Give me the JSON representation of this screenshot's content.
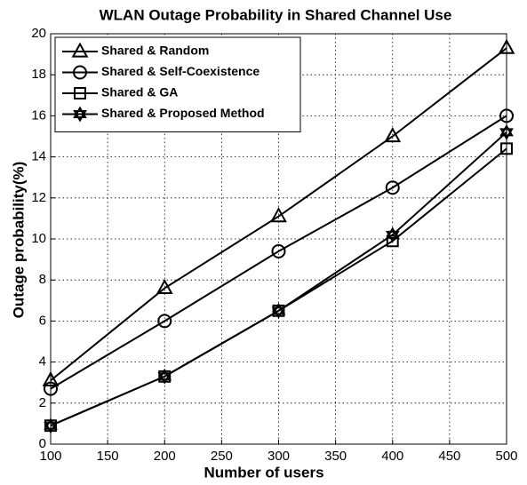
{
  "chart_data": {
    "type": "line",
    "title": "WLAN Outage Probability in Shared Channel Use",
    "x_label": "Number of users",
    "y_label": "Outage probability(%)",
    "x": [
      100,
      200,
      300,
      400,
      500
    ],
    "series": [
      {
        "name": "Shared & Random",
        "color": "#000000",
        "marker": "triangle",
        "values": [
          3.1,
          7.6,
          11.1,
          15.0,
          19.3
        ]
      },
      {
        "name": "Shared & Self-Coexistence",
        "color": "#000000",
        "marker": "circle",
        "values": [
          2.7,
          6.0,
          9.4,
          12.5,
          16.0
        ]
      },
      {
        "name": "Shared & GA",
        "color": "#000000",
        "marker": "square",
        "values": [
          0.9,
          3.3,
          6.5,
          9.9,
          14.4
        ]
      },
      {
        "name": "Shared & Proposed Method",
        "color": "#000000",
        "marker": "hexagram",
        "values": [
          0.9,
          3.3,
          6.5,
          10.2,
          15.2
        ]
      }
    ],
    "xlim": [
      100,
      500
    ],
    "xticks": [
      100,
      150,
      200,
      250,
      300,
      350,
      400,
      450,
      500
    ],
    "ylim": [
      0,
      20
    ],
    "yticks": [
      0,
      2,
      4,
      6,
      8,
      10,
      12,
      14,
      16,
      18,
      20
    ],
    "grid": true,
    "legend": "upper left"
  }
}
